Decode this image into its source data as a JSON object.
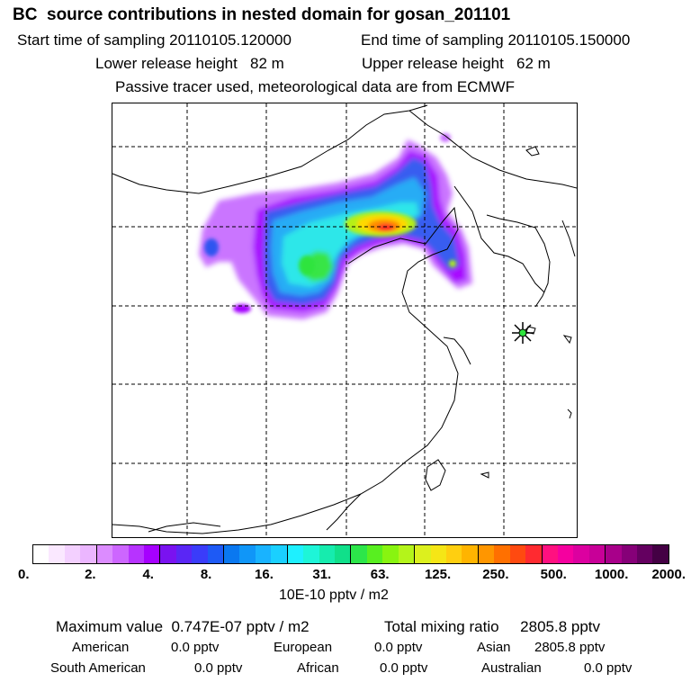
{
  "header": {
    "title": "BC  source contributions in nested domain for gosan_201101",
    "start_time": "Start time of sampling 20110105.120000",
    "end_time": "End time of sampling 20110105.150000",
    "lower_height": "Lower release height   82 m",
    "upper_height": "Upper release height   62 m",
    "note": "Passive tracer used, meteorological data are from ECMWF"
  },
  "colorbar": {
    "colors": [
      "#ffffff",
      "#fae8ff",
      "#f3d0ff",
      "#ebb6ff",
      "#dc8cff",
      "#cd66ff",
      "#b733ff",
      "#a600ff",
      "#7a12f0",
      "#5a26f5",
      "#3a3cfa",
      "#1e5af5",
      "#0a78f0",
      "#1096f8",
      "#19b3ff",
      "#1ad0ff",
      "#1ef0ff",
      "#1ef5d8",
      "#16ecae",
      "#10e08a",
      "#2ce64a",
      "#58ef20",
      "#88f410",
      "#b4f41a",
      "#dcf01e",
      "#f5e616",
      "#ffcf10",
      "#ffb400",
      "#ff9600",
      "#ff7000",
      "#ff4a10",
      "#ff2a30",
      "#ff1080",
      "#f5009f",
      "#dc00a0",
      "#c80098",
      "#a8008a",
      "#860078",
      "#640060",
      "#440044"
    ],
    "ticks": [
      "0.",
      "2.",
      "4.",
      "8.",
      "16.",
      "31.",
      "63.",
      "125.",
      "250.",
      "500.",
      "1000.",
      "2000."
    ],
    "unit": "10E-10 pptv / m2"
  },
  "summary": {
    "max_label": "Maximum value  0.747E-07 pptv / m2",
    "total_label": "Total mixing ratio     2805.8 pptv",
    "american_label": "American",
    "american_value": "0.0 pptv",
    "european_label": "European",
    "european_value": "0.0 pptv",
    "asian_label": "Asian",
    "asian_value": "2805.8 pptv",
    "south_american_label": "South American",
    "south_american_value": "0.0 pptv",
    "african_label": "African",
    "african_value": "0.0 pptv",
    "australian_label": "Australian",
    "australian_value": "0.0 pptv"
  },
  "map": {
    "receptor_marker": "star-icon",
    "plume_colors": {
      "violet": "#c86eff",
      "purple": "#a400ff",
      "blue": "#2f54f0",
      "lightblue": "#1ba8f5",
      "cyan": "#24e6e8",
      "green": "#2ee43d",
      "lime": "#b6f018",
      "yellow": "#ffd800",
      "orange": "#ff8c00",
      "red": "#ff1e28"
    }
  }
}
